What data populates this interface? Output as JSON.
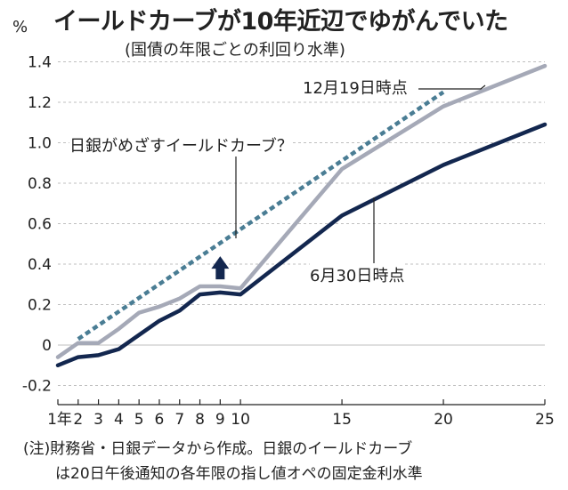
{
  "chart_data": {
    "type": "line",
    "title": "イールドカーブが10年近辺でゆがんでいた",
    "subtitle": "(国債の年限ごとの利回り水準)",
    "ylabel": "%",
    "ylim": [
      -0.25,
      1.5
    ],
    "yticks": [
      -0.2,
      0,
      0.2,
      0.4,
      0.6,
      0.8,
      1.0,
      1.2,
      1.4
    ],
    "ytick_labels": [
      "-0.2",
      "0",
      "0.2",
      "0.4",
      "0.6",
      "0.8",
      "1.0",
      "1.2",
      "1.4"
    ],
    "xlim": [
      1,
      25
    ],
    "xticks": [
      1,
      2,
      3,
      4,
      5,
      6,
      7,
      8,
      9,
      10,
      15,
      20,
      25
    ],
    "xtick_labels": [
      "1年",
      "2",
      "3",
      "4",
      "5",
      "6",
      "7",
      "8",
      "9",
      "10",
      "15",
      "20",
      "25"
    ],
    "grid": true,
    "series": [
      {
        "name": "12月19日時点",
        "color": "#a5a9b7",
        "style": "solid",
        "x": [
          1,
          2,
          3,
          4,
          5,
          6,
          7,
          8,
          9,
          10,
          15,
          20,
          25
        ],
        "y": [
          -0.06,
          0.01,
          0.01,
          0.08,
          0.16,
          0.19,
          0.23,
          0.29,
          0.29,
          0.28,
          0.87,
          1.18,
          1.38
        ]
      },
      {
        "name": "6月30日時点",
        "color": "#13274f",
        "style": "solid",
        "x": [
          1,
          2,
          3,
          4,
          5,
          6,
          7,
          8,
          9,
          10,
          15,
          20,
          25
        ],
        "y": [
          -0.1,
          -0.06,
          -0.05,
          -0.02,
          0.05,
          0.12,
          0.17,
          0.25,
          0.26,
          0.25,
          0.64,
          0.89,
          1.09
        ]
      },
      {
        "name": "日銀がめざすイールドカーブ？",
        "color": "#4a7d94",
        "style": "dashed",
        "x": [
          2,
          20
        ],
        "y": [
          0.03,
          1.25
        ]
      }
    ],
    "annotations": [
      "12月19日時点",
      "日銀がめざすイールドカーブ？",
      "6月30日時点"
    ]
  },
  "notes": {
    "line1": "(注)財務省・日銀データから作成。日銀のイールドカーブ",
    "line2": "は20日午後通知の各年限の指し値オペの固定金利水準"
  },
  "colors": {
    "arrow": "#13274f",
    "grid": "#bfbfbf"
  }
}
